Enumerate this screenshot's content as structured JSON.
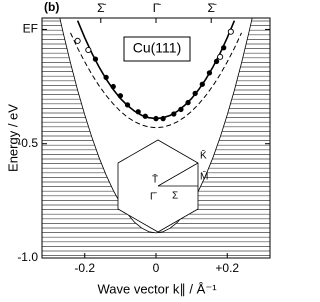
{
  "chart_data": {
    "type": "line",
    "panel_label": "(b)",
    "annotation": "Cu(111)",
    "xlabel": "Wave vector k∥ / Å⁻¹",
    "ylabel": "Energy / eV",
    "xlim": [
      -0.32,
      0.32
    ],
    "ylim": [
      -1.0,
      0.05
    ],
    "xticks": [
      -0.2,
      0,
      {
        "value": 0.2,
        "label": "+0.2"
      }
    ],
    "yticks": [
      {
        "value": 0,
        "label": "EF"
      },
      -0.5,
      {
        "value": -1.0,
        "label": "-1.0"
      }
    ],
    "top_ticks": [
      {
        "value": -0.155,
        "label": "Σ̄"
      },
      {
        "value": 0,
        "label": "Γ̄"
      },
      {
        "value": 0.155,
        "label": "Σ̄"
      }
    ],
    "hatched_outside_bulk_edge": true,
    "series": [
      {
        "style": "bulk-edge",
        "color": "#000000",
        "x": [
          -0.27,
          -0.26,
          -0.24,
          -0.22,
          -0.2,
          -0.18,
          -0.16,
          -0.14,
          -0.12,
          -0.1,
          -0.08,
          -0.06,
          -0.04,
          -0.02,
          0,
          0.02,
          0.04,
          0.06,
          0.08,
          0.1,
          0.12,
          0.14,
          0.16,
          0.18,
          0.2,
          0.22,
          0.24,
          0.26,
          0.27
        ],
        "values": [
          0.05,
          -0.018,
          -0.147,
          -0.266,
          -0.374,
          -0.472,
          -0.56,
          -0.637,
          -0.704,
          -0.761,
          -0.807,
          -0.844,
          -0.869,
          -0.885,
          -0.89,
          -0.885,
          -0.869,
          -0.844,
          -0.807,
          -0.761,
          -0.704,
          -0.637,
          -0.56,
          -0.472,
          -0.374,
          -0.266,
          -0.147,
          -0.018,
          0.05
        ]
      },
      {
        "style": "dashed",
        "color": "#000000",
        "x": [
          -0.24,
          -0.22,
          -0.2,
          -0.18,
          -0.16,
          -0.14,
          -0.12,
          -0.1,
          -0.08,
          -0.06,
          -0.04,
          -0.02,
          0,
          0.02,
          0.04,
          0.06,
          0.08,
          0.1,
          0.12,
          0.14,
          0.16,
          0.18,
          0.2,
          0.22,
          0.24
        ],
        "values": [
          -0.015,
          -0.082,
          -0.142,
          -0.197,
          -0.246,
          -0.289,
          -0.326,
          -0.358,
          -0.384,
          -0.404,
          -0.418,
          -0.427,
          -0.43,
          -0.427,
          -0.418,
          -0.404,
          -0.384,
          -0.358,
          -0.326,
          -0.289,
          -0.246,
          -0.197,
          -0.142,
          -0.082,
          -0.015
        ]
      },
      {
        "style": "solid",
        "color": "#000000",
        "x": [
          -0.22,
          -0.2,
          -0.18,
          -0.16,
          -0.14,
          -0.12,
          -0.1,
          -0.08,
          -0.06,
          -0.04,
          -0.02,
          0,
          0.02,
          0.04,
          0.06,
          0.08,
          0.1,
          0.12,
          0.14,
          0.16,
          0.18,
          0.2,
          0.22
        ],
        "values": [
          0.038,
          -0.036,
          -0.104,
          -0.164,
          -0.217,
          -0.263,
          -0.302,
          -0.333,
          -0.358,
          -0.376,
          -0.386,
          -0.39,
          -0.386,
          -0.376,
          -0.358,
          -0.333,
          -0.302,
          -0.263,
          -0.217,
          -0.164,
          -0.104,
          -0.036,
          0.038
        ]
      }
    ],
    "points": [
      {
        "marker": "filled",
        "color": "#000000",
        "x": [
          -0.17,
          -0.14,
          -0.12,
          -0.1,
          -0.08,
          -0.05,
          -0.03,
          0,
          0.02,
          0.05,
          0.07,
          0.09,
          0.11,
          0.13,
          0.15,
          0.17,
          0.19
        ],
        "values": [
          -0.13,
          -0.21,
          -0.25,
          -0.29,
          -0.33,
          -0.36,
          -0.38,
          -0.39,
          -0.39,
          -0.37,
          -0.35,
          -0.32,
          -0.28,
          -0.24,
          -0.19,
          -0.14,
          -0.08
        ]
      },
      {
        "marker": "open",
        "color": "#000000",
        "x": [
          -0.22,
          -0.19,
          0.18,
          0.21
        ],
        "values": [
          -0.05,
          -0.09,
          -0.12,
          -0.01
        ]
      }
    ],
    "inset_labels": {
      "gamma": "Γ̄",
      "sigma": "Σ",
      "m": "M̄",
      "k": "K̄",
      "t": "T̄"
    }
  }
}
